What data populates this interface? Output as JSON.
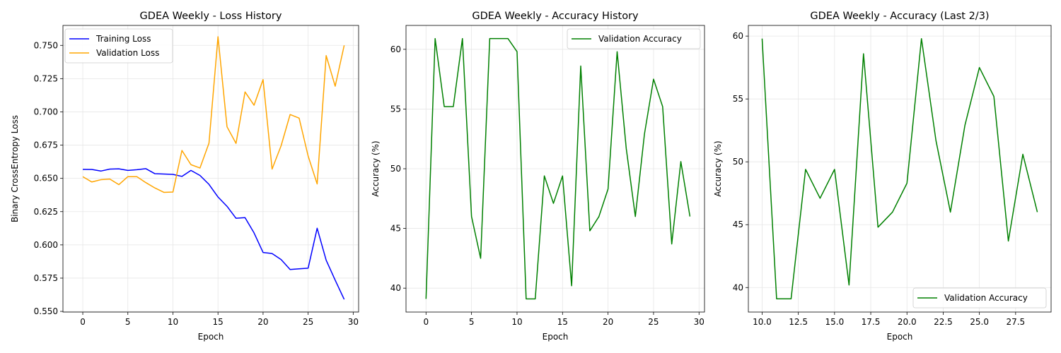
{
  "chart_data": [
    {
      "type": "line",
      "title": "GDEA Weekly - Loss History",
      "xlabel": "Epoch",
      "ylabel": "Binary CrossEntropy Loss",
      "xlim": [
        -2.2,
        30.6
      ],
      "ylim": [
        0.5495,
        0.765
      ],
      "xticks": [
        0,
        5,
        10,
        15,
        20,
        25,
        30
      ],
      "xtick_labels": [
        "0",
        "5",
        "10",
        "15",
        "20",
        "25",
        "30"
      ],
      "yticks": [
        0.55,
        0.575,
        0.6,
        0.625,
        0.65,
        0.675,
        0.7,
        0.725,
        0.75
      ],
      "ytick_labels": [
        "0.550",
        "0.575",
        "0.600",
        "0.625",
        "0.650",
        "0.675",
        "0.700",
        "0.725",
        "0.750"
      ],
      "grid": true,
      "legend": "upper left",
      "series": [
        {
          "name": "Training Loss",
          "color": "#0000ff",
          "x": [
            0,
            1,
            2,
            3,
            4,
            5,
            6,
            7,
            8,
            9,
            10,
            11,
            12,
            13,
            14,
            15,
            16,
            17,
            18,
            19,
            20,
            21,
            22,
            23,
            24,
            25,
            26,
            27,
            28,
            29
          ],
          "values": [
            0.6568,
            0.6567,
            0.6555,
            0.657,
            0.6572,
            0.656,
            0.6565,
            0.6573,
            0.6535,
            0.6533,
            0.653,
            0.6515,
            0.656,
            0.6522,
            0.6455,
            0.636,
            0.629,
            0.62,
            0.6205,
            0.609,
            0.5943,
            0.5935,
            0.589,
            0.5815,
            0.582,
            0.5825,
            0.6125,
            0.5885,
            0.5735,
            0.559
          ]
        },
        {
          "name": "Validation Loss",
          "color": "#ffa500",
          "x": [
            0,
            1,
            2,
            3,
            4,
            5,
            6,
            7,
            8,
            9,
            10,
            11,
            12,
            13,
            14,
            15,
            16,
            17,
            18,
            19,
            20,
            21,
            22,
            23,
            24,
            25,
            26,
            27,
            28,
            29
          ],
          "values": [
            0.6513,
            0.6473,
            0.649,
            0.6495,
            0.6453,
            0.6513,
            0.6513,
            0.6468,
            0.6428,
            0.6395,
            0.6397,
            0.671,
            0.6603,
            0.6578,
            0.6765,
            0.7565,
            0.6888,
            0.6763,
            0.715,
            0.705,
            0.7243,
            0.657,
            0.6745,
            0.698,
            0.6953,
            0.6668,
            0.6458,
            0.7423,
            0.7193,
            0.75
          ]
        }
      ]
    },
    {
      "type": "line",
      "title": "GDEA Weekly - Accuracy History",
      "xlabel": "Epoch",
      "ylabel": "Accuracy (%)",
      "xlim": [
        -2.2,
        30.6
      ],
      "ylim": [
        38.0,
        62.0
      ],
      "xticks": [
        0,
        5,
        10,
        15,
        20,
        25,
        30
      ],
      "xtick_labels": [
        "0",
        "5",
        "10",
        "15",
        "20",
        "25",
        "30"
      ],
      "yticks": [
        40,
        45,
        50,
        55,
        60
      ],
      "ytick_labels": [
        "40",
        "45",
        "50",
        "55",
        "60"
      ],
      "grid": true,
      "legend": "upper right",
      "series": [
        {
          "name": "Validation Accuracy",
          "color": "#008000",
          "x": [
            0,
            1,
            2,
            3,
            4,
            5,
            6,
            7,
            8,
            9,
            10,
            11,
            12,
            13,
            14,
            15,
            16,
            17,
            18,
            19,
            20,
            21,
            22,
            23,
            24,
            25,
            26,
            27,
            28,
            29
          ],
          "values": [
            39.1,
            60.9,
            55.2,
            55.2,
            60.9,
            46.0,
            42.5,
            60.9,
            60.9,
            60.9,
            59.8,
            39.1,
            39.1,
            49.4,
            47.1,
            49.4,
            40.2,
            58.6,
            44.8,
            46.0,
            48.3,
            59.8,
            51.7,
            46.0,
            52.9,
            57.5,
            55.2,
            43.7,
            50.6,
            46.0
          ]
        }
      ]
    },
    {
      "type": "line",
      "title": "GDEA Weekly - Accuracy (Last 2/3)",
      "xlabel": "Epoch",
      "ylabel": "Accuracy (%)",
      "xlim": [
        9.05,
        29.95
      ],
      "ylim": [
        38.05,
        60.85
      ],
      "xticks": [
        10.0,
        12.5,
        15.0,
        17.5,
        20.0,
        22.5,
        25.0,
        27.5
      ],
      "xtick_labels": [
        "10.0",
        "12.5",
        "15.0",
        "17.5",
        "20.0",
        "22.5",
        "25.0",
        "27.5"
      ],
      "yticks": [
        40,
        45,
        50,
        55,
        60
      ],
      "ytick_labels": [
        "40",
        "45",
        "50",
        "55",
        "60"
      ],
      "grid": true,
      "legend": "lower right",
      "series": [
        {
          "name": "Validation Accuracy",
          "color": "#008000",
          "x": [
            10,
            11,
            12,
            13,
            14,
            15,
            16,
            17,
            18,
            19,
            20,
            21,
            22,
            23,
            24,
            25,
            26,
            27,
            28,
            29
          ],
          "values": [
            59.8,
            39.1,
            39.1,
            49.4,
            47.1,
            49.4,
            40.2,
            58.6,
            44.8,
            46.0,
            48.3,
            59.8,
            51.7,
            46.0,
            52.9,
            57.5,
            55.2,
            43.7,
            50.6,
            46.0
          ]
        }
      ]
    }
  ]
}
